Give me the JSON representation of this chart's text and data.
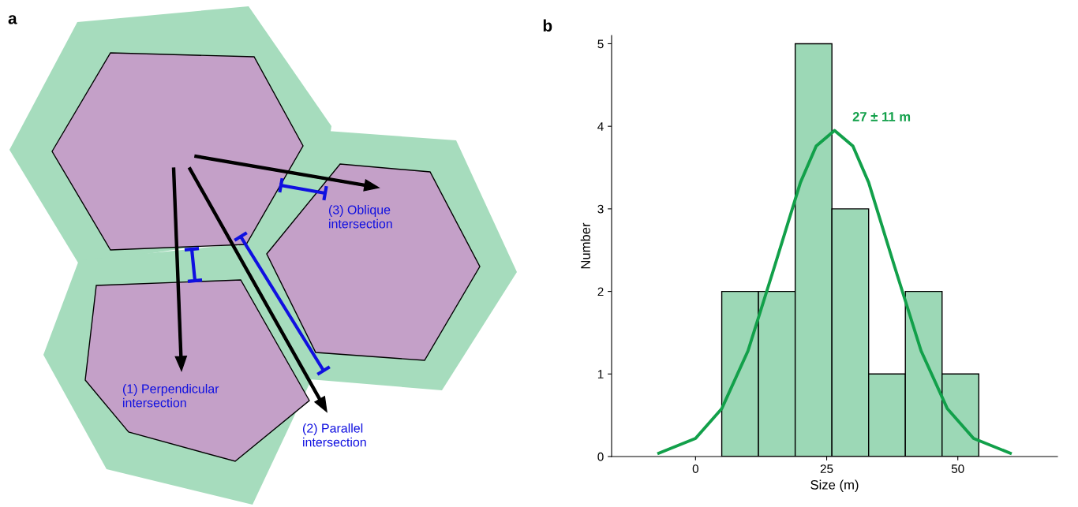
{
  "chart_data": [
    {
      "type": "other",
      "title": "a",
      "annotations": [
        "(1) Perpendicular\nintersection",
        "(2) Parallel\nintersection",
        "(3) Oblique\nintersection"
      ]
    },
    {
      "type": "histogram",
      "title": "b",
      "xlabel": "Size (m)",
      "ylabel": "Number",
      "bins": [
        5,
        12,
        19,
        26,
        33,
        40,
        47,
        54
      ],
      "values": [
        2,
        2,
        5,
        3,
        1,
        2,
        1
      ],
      "color": "#9cd8b6",
      "series": [
        {
          "type": "line",
          "color": "#12a04a",
          "x": [
            -7,
            0,
            5,
            10,
            15,
            20,
            23,
            26.5,
            30,
            33,
            38,
            43,
            48,
            53,
            60
          ],
          "values": [
            0.04,
            0.22,
            0.58,
            1.28,
            2.29,
            3.32,
            3.76,
            3.95,
            3.76,
            3.32,
            2.29,
            1.28,
            0.58,
            0.22,
            0.04
          ]
        }
      ],
      "annotations": [
        "27 ± 11 m"
      ],
      "xlim": [
        -16,
        69
      ],
      "xticks": [
        0,
        25,
        50
      ],
      "ylim": [
        0,
        5.1
      ],
      "yticks": [
        0,
        1,
        2,
        3,
        4,
        5
      ],
      "grid": false
    }
  ]
}
